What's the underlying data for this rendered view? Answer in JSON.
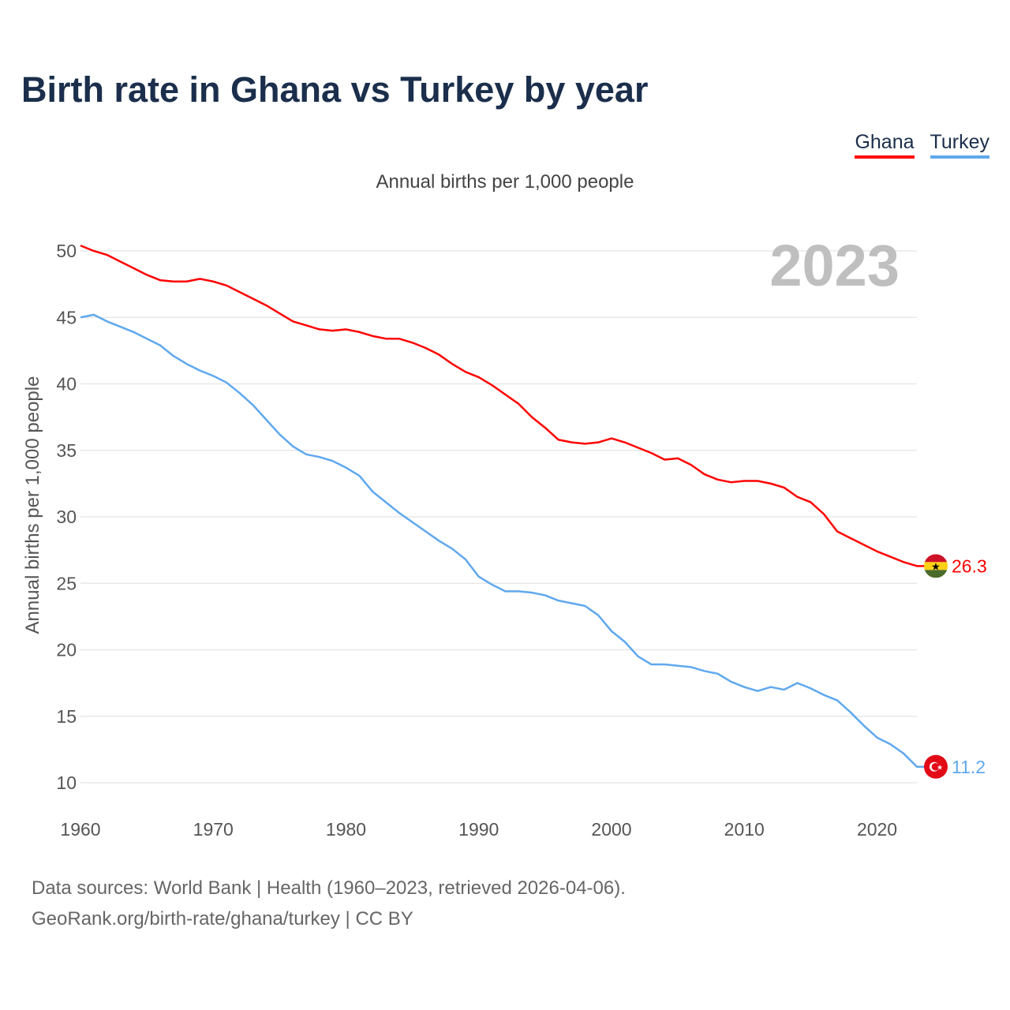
{
  "title": "Birth rate in Ghana vs Turkey by year",
  "legend": [
    {
      "label": "Ghana",
      "color": "#ff0000"
    },
    {
      "label": "Turkey",
      "color": "#5fa8ee"
    }
  ],
  "subtitle": "Annual births per 1,000 people",
  "year_watermark": "2023",
  "footer": {
    "line1": "Data sources: World Bank | Health (1960–2023, retrieved 2026-04-06).",
    "line2": "GeoRank.org/birth-rate/ghana/turkey | CC BY"
  },
  "chart_data": {
    "type": "line",
    "title": "Birth rate in Ghana vs Turkey by year",
    "xlabel": "",
    "ylabel": "Annual births per 1,000 people",
    "xlim": [
      1960,
      2023
    ],
    "ylim": [
      10,
      50
    ],
    "xticks": [
      "1960",
      "1970",
      "1980",
      "1990",
      "2000",
      "2010",
      "2020"
    ],
    "yticks": [
      "10",
      "15",
      "20",
      "25",
      "30",
      "35",
      "40",
      "45",
      "50"
    ],
    "grid": true,
    "legend_position": "top-right",
    "x": [
      1960,
      1961,
      1962,
      1963,
      1964,
      1965,
      1966,
      1967,
      1968,
      1969,
      1970,
      1971,
      1972,
      1973,
      1974,
      1975,
      1976,
      1977,
      1978,
      1979,
      1980,
      1981,
      1982,
      1983,
      1984,
      1985,
      1986,
      1987,
      1988,
      1989,
      1990,
      1991,
      1992,
      1993,
      1994,
      1995,
      1996,
      1997,
      1998,
      1999,
      2000,
      2001,
      2002,
      2003,
      2004,
      2005,
      2006,
      2007,
      2008,
      2009,
      2010,
      2011,
      2012,
      2013,
      2014,
      2015,
      2016,
      2017,
      2018,
      2019,
      2020,
      2021,
      2022,
      2023
    ],
    "series": [
      {
        "name": "Ghana",
        "color": "#ff0000",
        "end_label": "26.3",
        "flag": "ghana-flag",
        "values": [
          50.4,
          50.0,
          49.7,
          49.2,
          48.7,
          48.2,
          47.8,
          47.7,
          47.7,
          47.9,
          47.7,
          47.4,
          46.9,
          46.4,
          45.9,
          45.3,
          44.7,
          44.4,
          44.1,
          44.0,
          44.1,
          43.9,
          43.6,
          43.4,
          43.4,
          43.1,
          42.7,
          42.2,
          41.5,
          40.9,
          40.5,
          39.9,
          39.2,
          38.5,
          37.5,
          36.7,
          35.8,
          35.6,
          35.5,
          35.6,
          35.9,
          35.6,
          35.2,
          34.8,
          34.3,
          34.4,
          33.9,
          33.2,
          32.8,
          32.6,
          32.7,
          32.7,
          32.5,
          32.2,
          31.5,
          31.1,
          30.2,
          28.9,
          28.4,
          27.9,
          27.4,
          27.0,
          26.6,
          26.3
        ]
      },
      {
        "name": "Turkey",
        "color": "#5fa8ee",
        "end_label": "11.2",
        "flag": "turkey-flag",
        "values": [
          45.0,
          45.2,
          44.7,
          44.3,
          43.9,
          43.4,
          42.9,
          42.1,
          41.5,
          41.0,
          40.6,
          40.1,
          39.3,
          38.4,
          37.3,
          36.2,
          35.3,
          34.7,
          34.5,
          34.2,
          33.7,
          33.1,
          31.9,
          31.1,
          30.3,
          29.6,
          28.9,
          28.2,
          27.6,
          26.8,
          25.5,
          24.9,
          24.4,
          24.4,
          24.3,
          24.1,
          23.7,
          23.5,
          23.3,
          22.6,
          21.4,
          20.6,
          19.5,
          18.9,
          18.9,
          18.8,
          18.7,
          18.4,
          18.2,
          17.6,
          17.2,
          16.9,
          17.2,
          17.0,
          17.5,
          17.1,
          16.6,
          16.2,
          15.3,
          14.3,
          13.4,
          12.9,
          12.2,
          11.2
        ]
      }
    ]
  }
}
